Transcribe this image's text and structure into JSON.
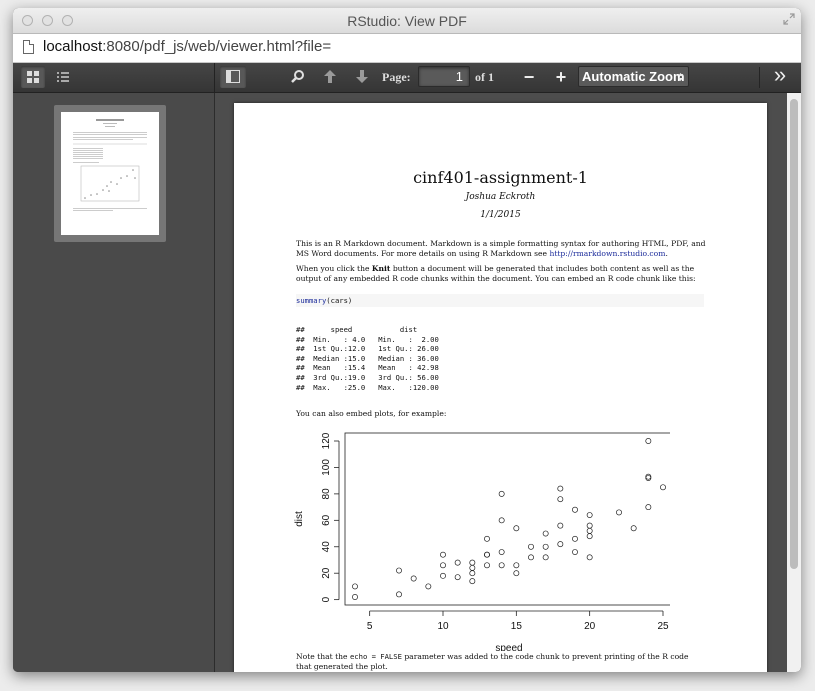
{
  "window": {
    "title": "RStudio: View PDF"
  },
  "urlbar": {
    "host": "localhost",
    "rest": ":8080/pdf_js/web/viewer.html?file="
  },
  "toolbar": {
    "page_label": "Page:",
    "page_number": "1",
    "page_count": "of 1",
    "zoom_minus": "−",
    "zoom_plus": "+",
    "zoom_value": "Automatic Zoom",
    "more": "»"
  },
  "document": {
    "title": "cinf401-assignment-1",
    "author": "Joshua Eckroth",
    "date": "1/1/2015",
    "para1": "This is an R Markdown document. Markdown is a simple formatting syntax for authoring HTML, PDF, and MS Word documents. For more details on using R Markdown see ",
    "para1_link": "http://rmarkdown.rstudio.com",
    "para1_end": ".",
    "para2_a": "When you click the ",
    "para2_bold": "Knit",
    "para2_b": " button a document will be generated that includes both content as well as the output of any embedded R code chunks within the document. You can embed an R code chunk like this:",
    "code_fn": "summary",
    "code_args": "(cars)",
    "output_lines": [
      "##      speed           dist       ",
      "##  Min.   : 4.0   Min.   :  2.00  ",
      "##  1st Qu.:12.0   1st Qu.: 26.00  ",
      "##  Median :15.0   Median : 36.00  ",
      "##  Mean   :15.4   Mean   : 42.98  ",
      "##  3rd Qu.:19.0   3rd Qu.: 56.00  ",
      "##  Max.   :25.0   Max.   :120.00  "
    ],
    "para3": "You can also embed plots, for example:",
    "note_a": "Note that the ",
    "note_code": "echo = FALSE",
    "note_b": " parameter was added to the code chunk to prevent printing of the R code that generated the plot."
  },
  "chart_data": {
    "type": "scatter",
    "xlabel": "speed",
    "ylabel": "dist",
    "x_ticks": [
      5,
      10,
      15,
      20,
      25
    ],
    "y_ticks": [
      0,
      20,
      40,
      60,
      80,
      100,
      120
    ],
    "xlim": [
      4,
      25
    ],
    "ylim": [
      2,
      120
    ],
    "points": [
      [
        4,
        2
      ],
      [
        4,
        10
      ],
      [
        7,
        4
      ],
      [
        7,
        22
      ],
      [
        8,
        16
      ],
      [
        9,
        10
      ],
      [
        10,
        18
      ],
      [
        10,
        26
      ],
      [
        10,
        34
      ],
      [
        11,
        17
      ],
      [
        11,
        28
      ],
      [
        12,
        14
      ],
      [
        12,
        20
      ],
      [
        12,
        24
      ],
      [
        12,
        28
      ],
      [
        13,
        26
      ],
      [
        13,
        34
      ],
      [
        13,
        34
      ],
      [
        13,
        46
      ],
      [
        14,
        26
      ],
      [
        14,
        36
      ],
      [
        14,
        60
      ],
      [
        14,
        80
      ],
      [
        15,
        20
      ],
      [
        15,
        26
      ],
      [
        15,
        54
      ],
      [
        16,
        32
      ],
      [
        16,
        40
      ],
      [
        17,
        32
      ],
      [
        17,
        40
      ],
      [
        17,
        50
      ],
      [
        18,
        42
      ],
      [
        18,
        56
      ],
      [
        18,
        76
      ],
      [
        18,
        84
      ],
      [
        19,
        36
      ],
      [
        19,
        46
      ],
      [
        19,
        68
      ],
      [
        20,
        32
      ],
      [
        20,
        48
      ],
      [
        20,
        52
      ],
      [
        20,
        56
      ],
      [
        20,
        64
      ],
      [
        22,
        66
      ],
      [
        23,
        54
      ],
      [
        24,
        70
      ],
      [
        24,
        92
      ],
      [
        24,
        93
      ],
      [
        24,
        120
      ],
      [
        25,
        85
      ]
    ]
  }
}
